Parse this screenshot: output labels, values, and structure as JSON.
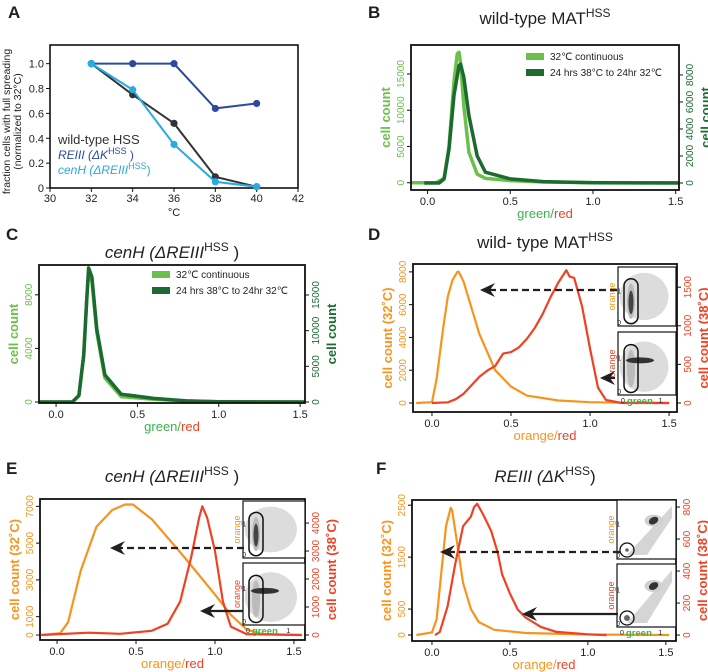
{
  "colors": {
    "orange": "#f7941d",
    "red": "#ef4123",
    "light_green": "#6cc04a",
    "dark_green": "#1b6b30",
    "label_green": "#39b54a",
    "dark_blue": "#2e4aa0",
    "light_blue": "#29aae1",
    "black": "#333333"
  },
  "chart_data": [
    {
      "panel": "A",
      "type": "line",
      "title": "",
      "ylabel_lines": [
        "fraction cells with full spreading",
        "(normalized to 32°C)"
      ],
      "xlabel": "°C",
      "xlim": [
        30,
        42
      ],
      "ylim": [
        0,
        1.15
      ],
      "xticks": [
        30,
        32,
        34,
        36,
        38,
        40,
        42
      ],
      "xtick_labels": [
        "30",
        "32",
        "34",
        "36",
        "38",
        "40",
        "42"
      ],
      "yticks": [
        0,
        0.2,
        0.4,
        0.6,
        0.8,
        1.0
      ],
      "ytick_labels": [
        "0",
        "0.2",
        "0.4",
        "0.6",
        "0.8",
        "1.0"
      ],
      "legend": [
        {
          "pre": "wild-type HSS",
          "sup": "",
          "post": "",
          "italic": false,
          "color": "#333333"
        },
        {
          "pre": "REIII (ΔK",
          "sup": "HSS",
          "post": " )",
          "italic": true,
          "color": "#2e4aa0"
        },
        {
          "pre": "cenH (ΔREIII",
          "sup": "HSS",
          "post": ")",
          "italic": true,
          "color": "#29aae1"
        }
      ],
      "series": [
        {
          "name": "wild-type HSS",
          "color": "#333333",
          "x": [
            32,
            34,
            36,
            38,
            40
          ],
          "y": [
            1.0,
            0.75,
            0.52,
            0.09,
            0.01
          ]
        },
        {
          "name": "REIII (ΔK HSS)",
          "color": "#2e4aa0",
          "x": [
            32,
            34,
            36,
            38,
            40
          ],
          "y": [
            1.0,
            1.0,
            1.0,
            0.64,
            0.68
          ]
        },
        {
          "name": "cenH (ΔREIII HSS)",
          "color": "#29aae1",
          "x": [
            32,
            34,
            36,
            38,
            40
          ],
          "y": [
            1.0,
            0.79,
            0.35,
            0.05,
            0.01
          ]
        }
      ]
    },
    {
      "panel": "B",
      "type": "line",
      "title": {
        "pre": "wild-type MAT",
        "sup": "HSS",
        "post": "",
        "italic": false
      },
      "xlabel": [
        {
          "text": "green",
          "color": "#39b54a"
        },
        {
          "text": "/",
          "color": "#39b54a"
        },
        {
          "text": "red",
          "color": "#ef4123"
        }
      ],
      "ylabel_left": {
        "text": "cell count",
        "color": "#6cc04a"
      },
      "ylabel_right": {
        "text": "cell count",
        "color": "#1b6b30"
      },
      "xlim": [
        -0.1,
        1.52
      ],
      "ylim_left": [
        -1000,
        19000
      ],
      "ylim_right": [
        -520,
        10220
      ],
      "xticks": [
        0,
        0.5,
        1.0,
        1.5
      ],
      "xtick_labels": [
        "0.0",
        "0.5",
        "1.0",
        "1.5"
      ],
      "yticks_left": [
        0,
        5000,
        10000,
        15000
      ],
      "yticks_left_labels": [
        "0",
        "5000",
        "10000",
        "15000"
      ],
      "yticks_right": [
        0,
        2000,
        4000,
        6000,
        8000
      ],
      "yticks_right_labels": [
        "0",
        "2000",
        "4000",
        "6000",
        "8000"
      ],
      "legend": [
        {
          "label": "32℃ continuous",
          "color": "#6cc04a"
        },
        {
          "label": "24 hrs 38°C to 24hr 32℃",
          "color": "#1b6b30"
        }
      ],
      "series": [
        {
          "name": "32℃ continuous",
          "axis": "left",
          "color": "#6cc04a",
          "x": [
            -0.1,
            0.05,
            0.1,
            0.13,
            0.16,
            0.18,
            0.19,
            0.2,
            0.22,
            0.25,
            0.3,
            0.35,
            0.5,
            0.7,
            1.0,
            1.52
          ],
          "y": [
            0,
            0,
            600,
            5000,
            14000,
            17800,
            18000,
            16500,
            10500,
            4200,
            1200,
            600,
            300,
            100,
            20,
            0
          ]
        },
        {
          "name": "24 hrs 38°C to 24hr 32℃",
          "axis": "right",
          "color": "#1b6b30",
          "x": [
            -0.02,
            0.07,
            0.1,
            0.13,
            0.16,
            0.19,
            0.2,
            0.22,
            0.25,
            0.3,
            0.35,
            0.5,
            0.7,
            1.0,
            1.52
          ],
          "y": [
            0,
            0,
            300,
            2500,
            6500,
            8700,
            8800,
            7800,
            5000,
            2000,
            800,
            300,
            100,
            20,
            0
          ]
        }
      ]
    },
    {
      "panel": "C",
      "type": "line",
      "title": {
        "pre": "cenH (ΔREIII",
        "sup": "HSS",
        "post": " )",
        "italic": true
      },
      "xlabel": [
        {
          "text": "green",
          "color": "#39b54a"
        },
        {
          "text": "/",
          "color": "#39b54a"
        },
        {
          "text": "red",
          "color": "#ef4123"
        }
      ],
      "ylabel_left": {
        "text": "cell count",
        "color": "#6cc04a"
      },
      "ylabel_right": {
        "text": "cell count",
        "color": "#1b6b30"
      },
      "xlim": [
        -0.105,
        1.53
      ],
      "ylim_left": [
        -75,
        10225
      ],
      "ylim_right": [
        -140,
        19200
      ],
      "xticks": [
        0,
        0.5,
        1.0,
        1.5
      ],
      "xtick_labels": [
        "0.0",
        "0.5",
        "1.0",
        "1.5"
      ],
      "yticks_left": [
        0,
        4000,
        8000
      ],
      "yticks_left_labels": [
        "0",
        "4000",
        "8000"
      ],
      "yticks_right": [
        0,
        5000,
        10000,
        15000
      ],
      "yticks_right_labels": [
        "0",
        "5000",
        "10000",
        "15000"
      ],
      "legend": [
        {
          "label": "32℃ continuous",
          "color": "#6cc04a"
        },
        {
          "label": "24 hrs 38°C to 24hr 32℃",
          "color": "#1b6b30"
        }
      ],
      "series": [
        {
          "name": "32℃ continuous",
          "axis": "left",
          "color": "#6cc04a",
          "x": [
            -0.1,
            0.1,
            0.14,
            0.17,
            0.19,
            0.2,
            0.22,
            0.25,
            0.3,
            0.4,
            0.6,
            0.8,
            1.0,
            1.53
          ],
          "y": [
            0,
            0,
            500,
            3500,
            8000,
            9600,
            9000,
            5200,
            1800,
            400,
            200,
            80,
            20,
            0
          ]
        },
        {
          "name": "24 hrs 38°C to 24hr 32℃",
          "axis": "right",
          "color": "#1b6b30",
          "x": [
            -0.1,
            0.1,
            0.14,
            0.17,
            0.19,
            0.2,
            0.22,
            0.25,
            0.3,
            0.4,
            0.6,
            0.8,
            1.0,
            1.53
          ],
          "y": [
            0,
            0,
            900,
            6500,
            15000,
            18800,
            17500,
            10200,
            3800,
            1100,
            500,
            150,
            40,
            0
          ]
        }
      ]
    },
    {
      "panel": "D",
      "type": "line",
      "title": {
        "pre": "wild- type MAT",
        "sup": "HSS",
        "post": "",
        "italic": false
      },
      "xlabel": [
        {
          "text": "orange",
          "color": "#f7941d"
        },
        {
          "text": "/",
          "color": "#f7941d"
        },
        {
          "text": "red",
          "color": "#ef4123"
        }
      ],
      "ylabel_left": {
        "text": "cell count (32˚C)",
        "color": "#f7941d"
      },
      "ylabel_right": {
        "text": "cell count (38˚C)",
        "color": "#ef4123"
      },
      "xlim": [
        -0.12,
        1.55
      ],
      "ylim_left": [
        -550,
        8480
      ],
      "ylim_right": [
        -116,
        1800
      ],
      "xticks": [
        0,
        0.5,
        1.0,
        1.5
      ],
      "xtick_labels": [
        "0.0",
        "0.5",
        "1.0",
        "1.5"
      ],
      "yticks_left": [
        0,
        2000,
        4000,
        6000,
        8000
      ],
      "yticks_left_labels": [
        "0",
        "2000",
        "4000",
        "6000",
        "8000"
      ],
      "yticks_right": [
        0,
        500,
        1000,
        1500
      ],
      "yticks_right_labels": [
        "0",
        "500",
        "1000",
        "1500"
      ],
      "series": [
        {
          "name": "32˚C",
          "axis": "left",
          "color": "#f7941d",
          "x": [
            -0.1,
            0.0,
            0.03,
            0.07,
            0.1,
            0.13,
            0.16,
            0.17,
            0.2,
            0.25,
            0.3,
            0.4,
            0.5,
            0.6,
            0.8,
            1.0,
            1.2,
            1.5
          ],
          "y": [
            0,
            50,
            1500,
            4500,
            6500,
            7500,
            8000,
            8000,
            7400,
            5800,
            4200,
            2000,
            1000,
            450,
            150,
            50,
            20,
            0
          ]
        },
        {
          "name": "38˚C",
          "axis": "right",
          "color": "#ef4123",
          "x": [
            0,
            0.1,
            0.15,
            0.2,
            0.25,
            0.3,
            0.35,
            0.4,
            0.45,
            0.5,
            0.55,
            0.6,
            0.65,
            0.7,
            0.75,
            0.8,
            0.85,
            0.87,
            0.9,
            0.95,
            1.0,
            1.05,
            1.1,
            1.2,
            1.5
          ],
          "y": [
            0,
            10,
            50,
            120,
            230,
            340,
            420,
            480,
            640,
            660,
            720,
            830,
            970,
            1150,
            1370,
            1560,
            1720,
            1640,
            1620,
            1250,
            700,
            200,
            40,
            0,
            0
          ]
        }
      ],
      "insets": [
        {
          "ylabel": "orange",
          "ylabel_color": "#f7941d",
          "yticks": [
            "0",
            "1"
          ],
          "xlabel": "",
          "gate": "oval",
          "arrow": "dashed"
        },
        {
          "ylabel": "orange",
          "ylabel_color": "#ef4123",
          "yticks": [
            "0",
            "1"
          ],
          "xticks": [
            "0",
            "1"
          ],
          "xlabel": "green",
          "gate": "oval",
          "arrow": "solid"
        }
      ]
    },
    {
      "panel": "E",
      "type": "line",
      "title": {
        "pre": "cenH (ΔREIII",
        "sup": "HSS",
        "post": " )",
        "italic": true
      },
      "xlabel": [
        {
          "text": "orange",
          "color": "#f7941d"
        },
        {
          "text": "/",
          "color": "#f7941d"
        },
        {
          "text": "red",
          "color": "#ef4123"
        }
      ],
      "ylabel_left": {
        "text": "cell count (32˚C)",
        "color": "#f7941d"
      },
      "ylabel_right": {
        "text": "cell count (38˚C)",
        "color": "#ef4123"
      },
      "xlim": [
        -0.108,
        1.57
      ],
      "ylim_left": [
        -270,
        7400
      ],
      "ylim_right": [
        -180,
        4860
      ],
      "xticks": [
        0,
        0.5,
        1.0,
        1.5
      ],
      "xtick_labels": [
        "0.0",
        "0.5",
        "1.0",
        "1.5"
      ],
      "yticks_left": [
        0,
        1000,
        3000,
        5000,
        7000
      ],
      "yticks_left_labels": [
        "0",
        "1000",
        "3000",
        "5000",
        "7000"
      ],
      "yticks_right": [
        0,
        1000,
        2000,
        3000,
        4000
      ],
      "yticks_right_labels": [
        "0",
        "1000",
        "2000",
        "3000",
        "4000"
      ],
      "series": [
        {
          "name": "32˚C",
          "axis": "left",
          "color": "#f7941d",
          "x": [
            -0.1,
            0.02,
            0.07,
            0.15,
            0.25,
            0.35,
            0.43,
            0.48,
            0.6,
            0.8,
            1.0,
            1.1,
            1.2,
            1.3,
            1.55
          ],
          "y": [
            0,
            100,
            700,
            3500,
            5900,
            6800,
            7100,
            7100,
            6300,
            4300,
            2200,
            1100,
            300,
            50,
            0
          ]
        },
        {
          "name": "38˚C",
          "axis": "right",
          "color": "#ef4123",
          "x": [
            -0.1,
            0.2,
            0.4,
            0.6,
            0.7,
            0.78,
            0.85,
            0.9,
            0.92,
            0.95,
            1.0,
            1.05,
            1.1,
            1.2,
            1.55
          ],
          "y": [
            0,
            80,
            40,
            150,
            400,
            1200,
            2800,
            4200,
            4600,
            4200,
            3000,
            1200,
            300,
            30,
            0
          ]
        }
      ],
      "insets": [
        {
          "ylabel": "orange",
          "ylabel_color": "#f7941d",
          "yticks": [
            "0",
            "1"
          ],
          "xlabel": "",
          "gate": "oval",
          "arrow": "dashed"
        },
        {
          "ylabel": "orange",
          "ylabel_color": "#ef4123",
          "yticks": [
            "0",
            "1"
          ],
          "xticks": [
            "0",
            "1"
          ],
          "xlabel": "green",
          "gate": "oval",
          "arrow": "solid"
        }
      ]
    },
    {
      "panel": "F",
      "type": "line",
      "title": {
        "pre": "REIII (ΔK",
        "sup": "HSS",
        "post": ")",
        "italic": true
      },
      "xlabel": [
        {
          "text": "orange",
          "color": "#f7941d"
        },
        {
          "text": "/",
          "color": "#f7941d"
        },
        {
          "text": "red",
          "color": "#ef4123"
        }
      ],
      "ylabel_left": {
        "text": "cell count (32˚C)",
        "color": "#f7941d"
      },
      "ylabel_right": {
        "text": "cell count (38˚C)",
        "color": "#ef4123"
      },
      "xlim": [
        -0.128,
        1.565
      ],
      "ylim_left": [
        -115,
        2600
      ],
      "ylim_right": [
        -37,
        844
      ],
      "xticks": [
        0,
        0.5,
        1.0,
        1.5
      ],
      "xtick_labels": [
        "0.0",
        "0.5",
        "1.0",
        "1.5"
      ],
      "yticks_left": [
        0,
        500,
        1500,
        2500
      ],
      "yticks_left_labels": [
        "0",
        "500",
        "1500",
        "2500"
      ],
      "yticks_right": [
        0,
        200,
        400,
        600,
        800
      ],
      "yticks_right_labels": [
        "0",
        "200",
        "400",
        "600",
        "800"
      ],
      "series": [
        {
          "name": "32˚C",
          "axis": "left",
          "color": "#f7941d",
          "x": [
            -0.1,
            0.0,
            0.03,
            0.06,
            0.09,
            0.12,
            0.13,
            0.16,
            0.2,
            0.25,
            0.3,
            0.4,
            0.6,
            1.0,
            1.52
          ],
          "y": [
            0,
            50,
            300,
            1200,
            2100,
            2450,
            2400,
            1800,
            1000,
            500,
            250,
            100,
            40,
            10,
            0
          ]
        },
        {
          "name": "38˚C",
          "axis": "right",
          "color": "#ef4123",
          "x": [
            0.02,
            0.05,
            0.1,
            0.15,
            0.2,
            0.25,
            0.27,
            0.29,
            0.33,
            0.38,
            0.42,
            0.45,
            0.5,
            0.55,
            0.6,
            0.7,
            0.8,
            1.0,
            1.12
          ],
          "y": [
            0,
            20,
            180,
            450,
            680,
            740,
            800,
            820,
            750,
            650,
            520,
            380,
            260,
            160,
            110,
            50,
            20,
            5,
            0
          ]
        }
      ],
      "insets": [
        {
          "ylabel": "orange",
          "ylabel_color": "#f7941d",
          "yticks": [
            "0",
            "1"
          ],
          "xlabel": "",
          "gate": "circle",
          "arrow": "dashed"
        },
        {
          "ylabel": "orange",
          "ylabel_color": "#ef4123",
          "yticks": [
            "0",
            "1"
          ],
          "xticks": [
            "0",
            "1"
          ],
          "xlabel": "green",
          "gate": "circle",
          "arrow": "solid"
        }
      ]
    }
  ]
}
